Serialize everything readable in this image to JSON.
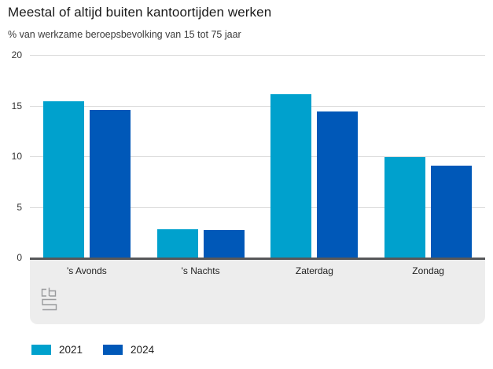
{
  "header": {
    "title": "Meestal of altijd buiten kantoortijden werken",
    "subtitle": "% van werkzame beroepsbevolking van 15 tot 75 jaar"
  },
  "chart_data": {
    "type": "bar",
    "title": "Meestal of altijd buiten kantoortijden werken",
    "subtitle": "% van werkzame beroepsbevolking van 15 tot 75 jaar",
    "unit": "%",
    "categories": [
      "'s Avonds",
      "'s Nachts",
      "Zaterdag",
      "Zondag"
    ],
    "series": [
      {
        "name": "2021",
        "color": "#00a1cd",
        "values": [
          15.4,
          2.8,
          16.1,
          9.9
        ]
      },
      {
        "name": "2024",
        "color": "#0058b8",
        "values": [
          14.6,
          2.7,
          14.4,
          9.1
        ]
      }
    ],
    "ylim": [
      0,
      20
    ],
    "yticks": [
      0,
      5,
      10,
      15,
      20
    ],
    "grid": true,
    "legend_position": "bottom-left"
  },
  "legend": {
    "items": [
      {
        "label": "2021",
        "color": "#00a1cd"
      },
      {
        "label": "2024",
        "color": "#0058b8"
      }
    ]
  },
  "branding": {
    "logo": "cbs-logo"
  },
  "colors": {
    "title_text": "#1a1a1a",
    "axis_text": "#333333",
    "gridline": "#dcdcdc",
    "baseline": "#57585a",
    "footer_bg": "#ededed",
    "logo_gray": "#9a9b9d",
    "series_2021": "#00a1cd",
    "series_2024": "#0058b8"
  }
}
